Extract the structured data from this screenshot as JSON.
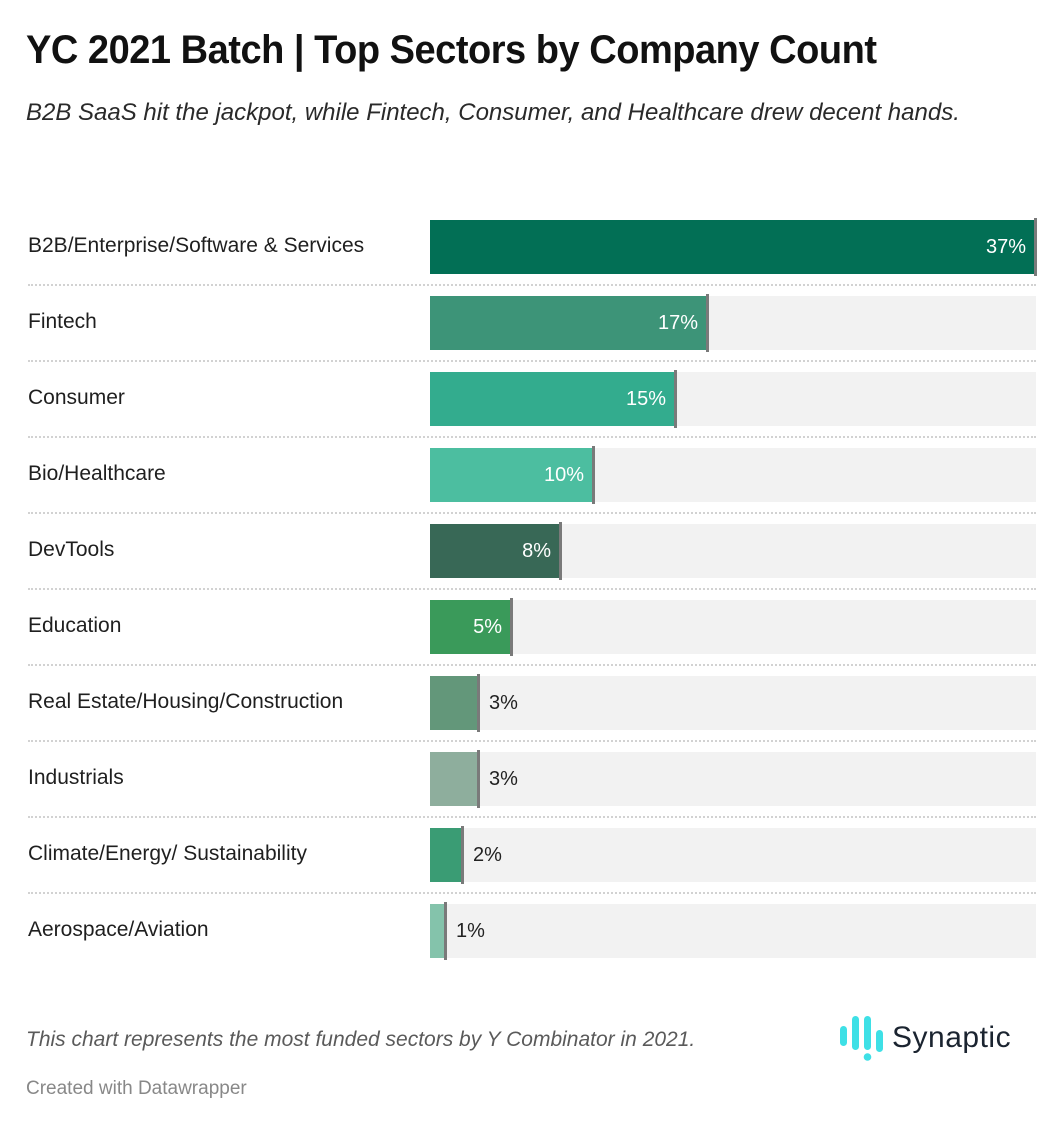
{
  "header": {
    "title": "YC 2021 Batch | Top Sectors by Company Count",
    "subtitle": "B2B SaaS hit the jackpot, while Fintech, Consumer, and Healthcare drew decent hands."
  },
  "footer": {
    "notes": "This chart represents the most funded sectors by Y Combinator in 2021.",
    "byline": "Created with Datawrapper",
    "logo_text": "Synaptic",
    "logo_icon": "synaptic-bars-icon",
    "logo_color": "#3ee0e6"
  },
  "chart_data": {
    "type": "bar",
    "orientation": "horizontal",
    "title": "YC 2021 Batch | Top Sectors by Company Count",
    "subtitle": "B2B SaaS hit the jackpot, while Fintech, Consumer, and Healthcare drew decent hands.",
    "xlabel": "",
    "ylabel": "",
    "unit": "%",
    "xlim": [
      0,
      37
    ],
    "grid": false,
    "legend": "none",
    "categories": [
      "B2B/Enterprise/Software & Services",
      "Fintech",
      "Consumer",
      "Bio/Healthcare",
      "DevTools",
      "Education",
      "Real Estate/Housing/Construction",
      "Industrials",
      "Climate/Energy/ Sustainability",
      "Aerospace/Aviation"
    ],
    "values": [
      37,
      17,
      15,
      10,
      8,
      5,
      3,
      3,
      2,
      1
    ],
    "labels": [
      "37%",
      "17%",
      "15%",
      "10%",
      "8%",
      "5%",
      "3%",
      "3%",
      "2%",
      "1%"
    ],
    "colors": [
      "#026f55",
      "#3d9478",
      "#33ac8e",
      "#4cbea0",
      "#386856",
      "#3a9a5a",
      "#63977a",
      "#8eae9d",
      "#3a9c74",
      "#84c3ab"
    ],
    "track_color": "#f2f2f2",
    "notes": "This chart represents the most funded sectors by Y Combinator in 2021."
  }
}
